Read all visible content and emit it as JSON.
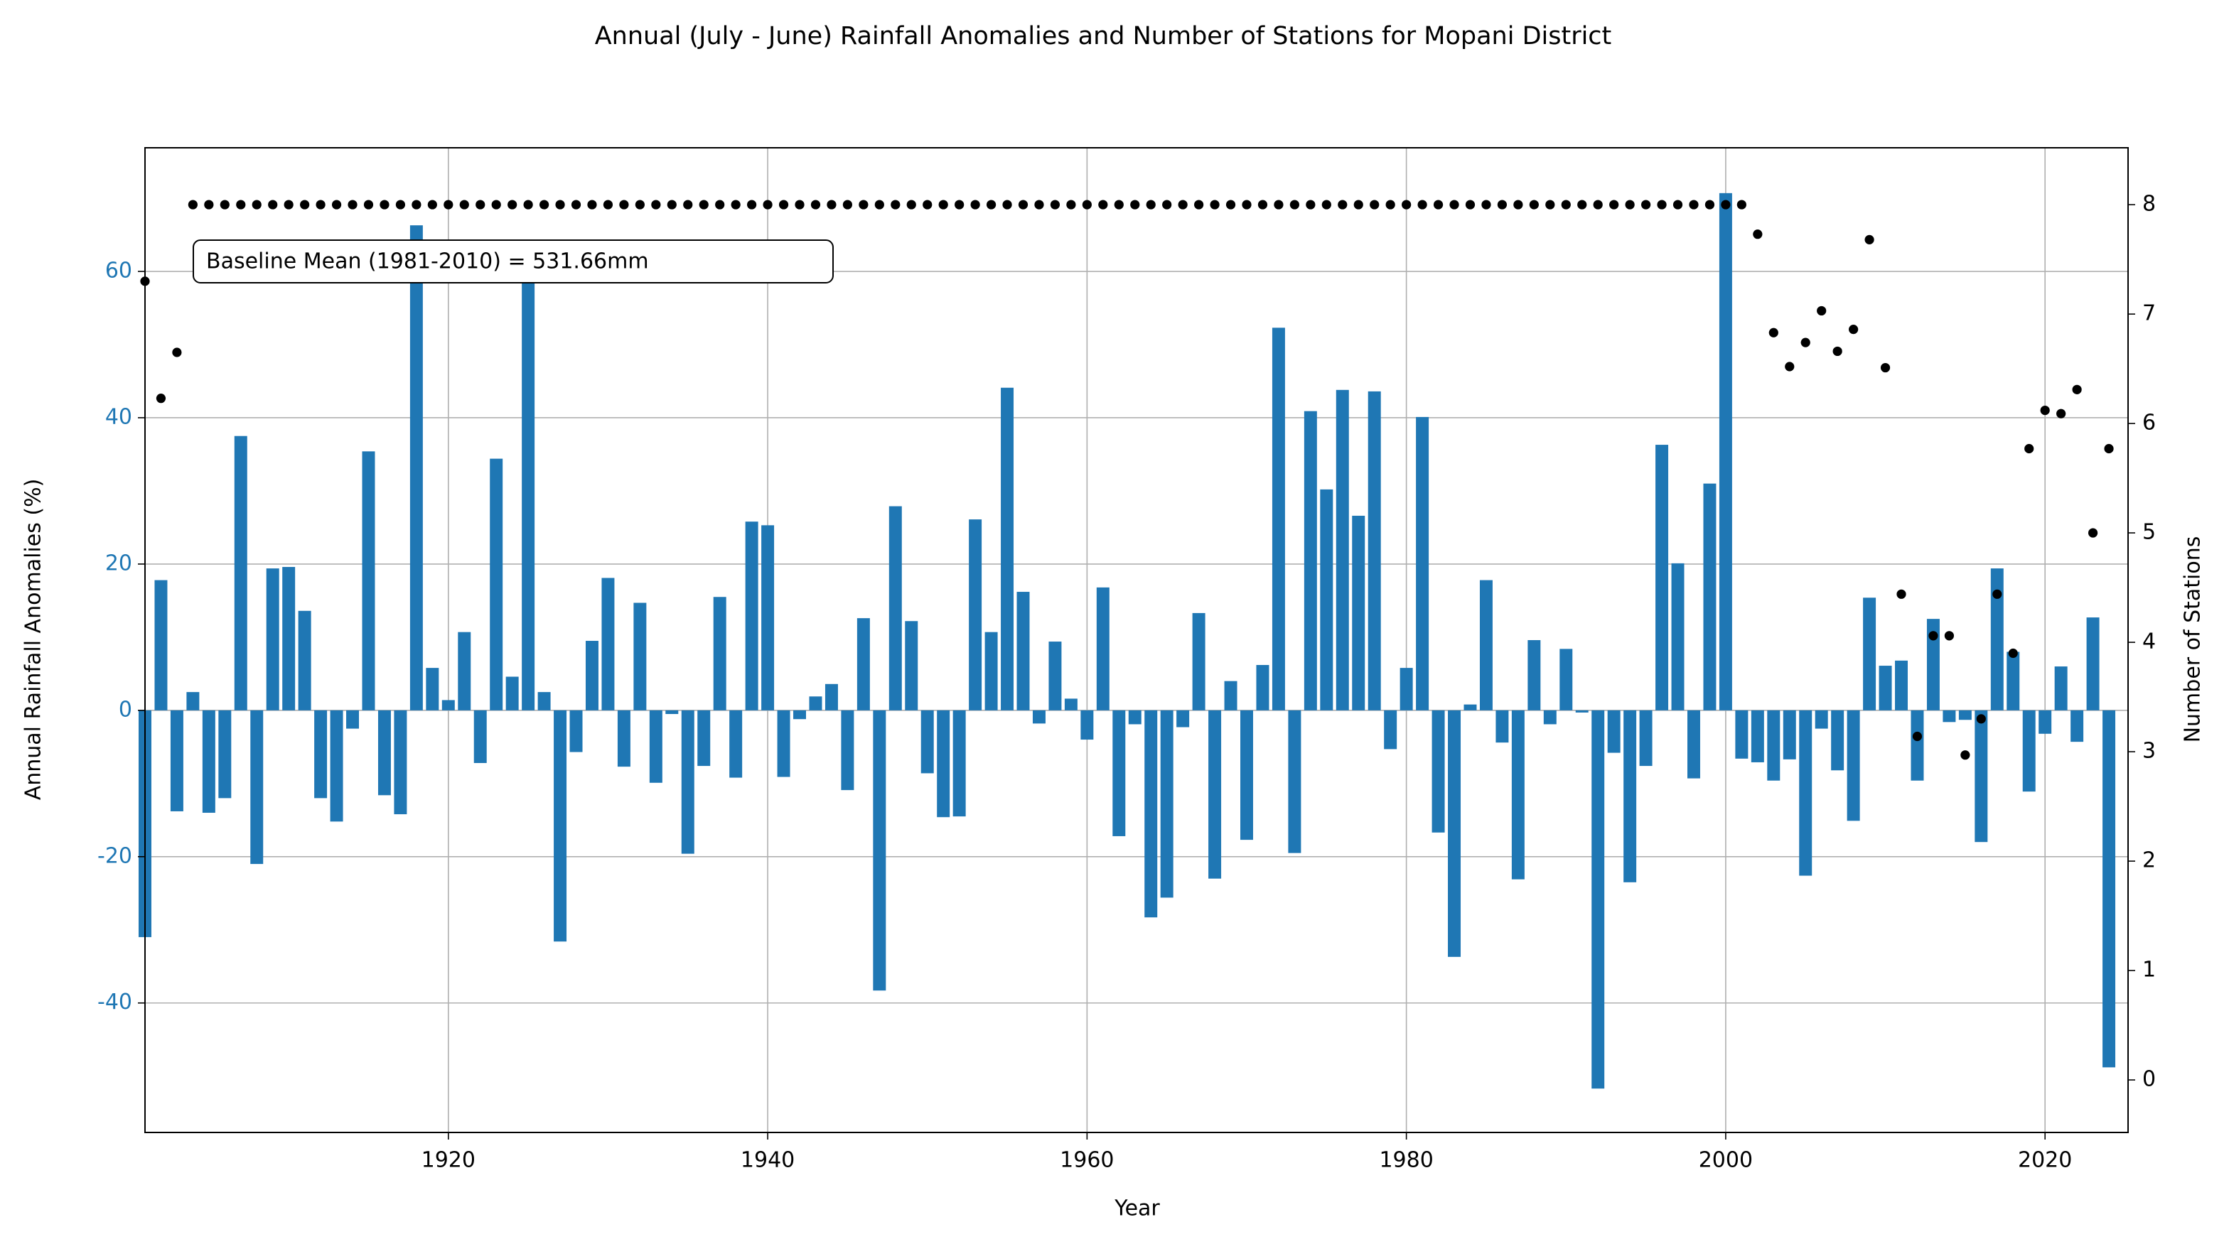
{
  "chart_data": {
    "type": "bar",
    "title": "Annual (July - June) Rainfall Anomalies and Number of Stations for Mopani District",
    "xlabel": "Year",
    "ylabel": "Annual  Rainfall Anomalies (%)",
    "y2label": "Number of Stations",
    "annotation": "Baseline Mean (1981-2010) = 531.66mm",
    "x": [
      1901,
      1902,
      1903,
      1904,
      1905,
      1906,
      1907,
      1908,
      1909,
      1910,
      1911,
      1912,
      1913,
      1914,
      1915,
      1916,
      1917,
      1918,
      1919,
      1920,
      1921,
      1922,
      1923,
      1924,
      1925,
      1926,
      1927,
      1928,
      1929,
      1930,
      1931,
      1932,
      1933,
      1934,
      1935,
      1936,
      1937,
      1938,
      1939,
      1940,
      1941,
      1942,
      1943,
      1944,
      1945,
      1946,
      1947,
      1948,
      1949,
      1950,
      1951,
      1952,
      1953,
      1954,
      1955,
      1956,
      1957,
      1958,
      1959,
      1960,
      1961,
      1962,
      1963,
      1964,
      1965,
      1966,
      1967,
      1968,
      1969,
      1970,
      1971,
      1972,
      1973,
      1974,
      1975,
      1976,
      1977,
      1978,
      1979,
      1980,
      1981,
      1982,
      1983,
      1984,
      1985,
      1986,
      1987,
      1988,
      1989,
      1990,
      1991,
      1992,
      1993,
      1994,
      1995,
      1996,
      1997,
      1998,
      1999,
      2000,
      2001,
      2002,
      2003,
      2004,
      2005,
      2006,
      2007,
      2008,
      2009,
      2010,
      2011,
      2012,
      2013,
      2014,
      2015,
      2016,
      2017,
      2018,
      2019,
      2020,
      2021,
      2022,
      2023,
      2024
    ],
    "series": [
      {
        "type": "bar",
        "color": "#1f77b4",
        "axis": "y",
        "values": [
          -31,
          17.8,
          -13.8,
          2.5,
          -14,
          -12,
          37.5,
          -21,
          19.4,
          19.6,
          13.6,
          -12,
          -15.2,
          -2.5,
          35.4,
          -11.6,
          -14.2,
          66.3,
          5.8,
          1.4,
          10.7,
          -7.2,
          34.4,
          4.6,
          59.5,
          2.5,
          -31.6,
          -5.7,
          9.5,
          18.1,
          -7.7,
          14.7,
          -9.9,
          -0.5,
          -19.6,
          -7.6,
          15.5,
          -9.2,
          25.8,
          25.3,
          -9.1,
          -1.2,
          1.9,
          3.6,
          -10.9,
          12.6,
          -38.3,
          27.9,
          12.2,
          -8.6,
          -14.6,
          -14.5,
          26.1,
          10.7,
          44.1,
          16.2,
          -1.8,
          9.4,
          1.6,
          -4,
          16.8,
          -17.2,
          -1.9,
          -28.3,
          -25.6,
          -2.3,
          13.3,
          -23,
          4,
          -17.7,
          6.2,
          52.3,
          -19.5,
          40.9,
          30.2,
          43.8,
          26.6,
          43.6,
          -5.3,
          5.8,
          40.1,
          -16.7,
          -33.7,
          0.8,
          17.8,
          -4.4,
          -23.1,
          9.6,
          -1.9,
          8.4,
          -0.3,
          -51.7,
          -5.8,
          -23.5,
          -7.6,
          36.3,
          20.1,
          -9.3,
          31,
          70.7,
          -6.6,
          -7.1,
          -9.6,
          -6.7,
          -22.6,
          -2.5,
          -8.2,
          -15.1,
          15.4,
          6.1,
          6.8,
          -9.6,
          12.5,
          -1.6,
          -1.3,
          -18,
          19.4,
          8,
          -11.1,
          -3.2,
          6,
          -4.3,
          12.7,
          -48.8
        ]
      },
      {
        "type": "scatter",
        "color": "#000000",
        "axis": "y2",
        "values": [
          7.3,
          6.23,
          6.65,
          8,
          8,
          8,
          8,
          8,
          8,
          8,
          8,
          8,
          8,
          8,
          8,
          8,
          8,
          8,
          8,
          8,
          8,
          8,
          8,
          8,
          8,
          8,
          8,
          8,
          8,
          8,
          8,
          8,
          8,
          8,
          8,
          8,
          8,
          8,
          8,
          8,
          8,
          8,
          8,
          8,
          8,
          8,
          8,
          8,
          8,
          8,
          8,
          8,
          8,
          8,
          8,
          8,
          8,
          8,
          8,
          8,
          8,
          8,
          8,
          8,
          8,
          8,
          8,
          8,
          8,
          8,
          8,
          8,
          8,
          8,
          8,
          8,
          8,
          8,
          8,
          8,
          8,
          8,
          8,
          8,
          8,
          8,
          8,
          8,
          8,
          8,
          8,
          8,
          8,
          8,
          8,
          8,
          8,
          8,
          8,
          8,
          8,
          7.73,
          6.83,
          6.52,
          6.74,
          7.03,
          6.66,
          6.86,
          7.68,
          6.51,
          4.44,
          3.14,
          4.06,
          4.06,
          2.97,
          3.3,
          4.44,
          3.9,
          5.77,
          6.12,
          6.09,
          6.31,
          5,
          5.77
        ]
      }
    ],
    "xlim": [
      1901,
      2025.2
    ],
    "xticks": [
      1920,
      1940,
      1960,
      1980,
      2000,
      2020
    ],
    "ylim": [
      -57.7,
      76.9
    ],
    "yticks": [
      -40,
      -20,
      0,
      20,
      40,
      60
    ],
    "ytick_color": "#1f77b4",
    "y2lim": [
      -0.48,
      8.52
    ],
    "y2ticks": [
      0,
      1,
      2,
      3,
      4,
      5,
      6,
      7,
      8
    ],
    "grid": true
  }
}
